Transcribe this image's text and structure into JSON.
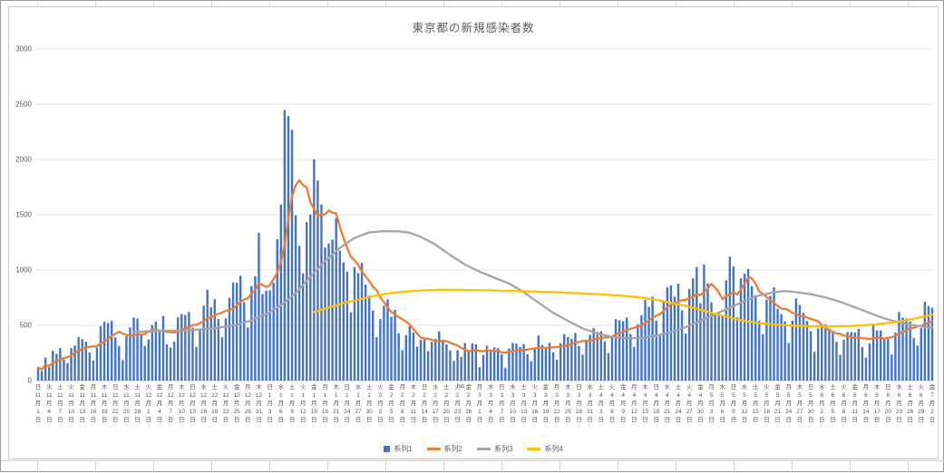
{
  "window": {
    "app_hint": "spreadsheet-embedded-chart"
  },
  "chart_data": {
    "type": "combo",
    "title": "東京都の新規感染者数",
    "xlabel": "",
    "ylabel": "",
    "ylim": [
      0,
      3000
    ],
    "y_ticks": [
      0,
      500,
      1000,
      1500,
      2000,
      2500,
      3000
    ],
    "grid": "horizontal",
    "x_tick_every_n_days": 3,
    "x_tick_label_format": [
      "dow",
      "month",
      "月",
      "day",
      "日"
    ],
    "x_tick_labels": [
      [
        "日",
        11,
        1
      ],
      [
        "水",
        11,
        4
      ],
      [
        "土",
        11,
        7
      ],
      [
        "火",
        11,
        10
      ],
      [
        "金",
        11,
        13
      ],
      [
        "月",
        11,
        16
      ],
      [
        "木",
        11,
        19
      ],
      [
        "日",
        11,
        22
      ],
      [
        "水",
        11,
        25
      ],
      [
        "土",
        11,
        28
      ],
      [
        "火",
        12,
        1
      ],
      [
        "金",
        12,
        4
      ],
      [
        "月",
        12,
        7
      ],
      [
        "木",
        12,
        10
      ],
      [
        "日",
        12,
        13
      ],
      [
        "水",
        12,
        16
      ],
      [
        "土",
        12,
        19
      ],
      [
        "火",
        12,
        22
      ],
      [
        "金",
        12,
        25
      ],
      [
        "月",
        12,
        28
      ],
      [
        "木",
        12,
        31
      ],
      [
        "日",
        1,
        3
      ],
      [
        "水",
        1,
        6
      ],
      [
        "土",
        1,
        9
      ],
      [
        "火",
        1,
        12
      ],
      [
        "金",
        1,
        15
      ],
      [
        "月",
        1,
        18
      ],
      [
        "木",
        1,
        21
      ],
      [
        "日",
        1,
        24
      ],
      [
        "水",
        1,
        27
      ],
      [
        "土",
        1,
        30
      ],
      [
        "火",
        2,
        2
      ],
      [
        "金",
        2,
        5
      ],
      [
        "月",
        2,
        8
      ],
      [
        "木",
        2,
        11
      ],
      [
        "日",
        2,
        14
      ],
      [
        "水",
        2,
        17
      ],
      [
        "土",
        2,
        20
      ],
      [
        "火",
        2,
        23
      ],
      [
        "金",
        2,
        26
      ],
      [
        "月",
        3,
        1
      ],
      [
        "木",
        3,
        4
      ],
      [
        "日",
        3,
        7
      ],
      [
        "水",
        3,
        10
      ],
      [
        "土",
        3,
        13
      ],
      [
        "火",
        3,
        16
      ],
      [
        "金",
        3,
        19
      ],
      [
        "月",
        3,
        22
      ],
      [
        "木",
        3,
        25
      ],
      [
        "日",
        3,
        28
      ],
      [
        "水",
        3,
        31
      ],
      [
        "土",
        4,
        3
      ],
      [
        "火",
        4,
        6
      ],
      [
        "金",
        4,
        9
      ],
      [
        "月",
        4,
        12
      ],
      [
        "木",
        4,
        15
      ],
      [
        "日",
        4,
        18
      ],
      [
        "水",
        4,
        21
      ],
      [
        "土",
        4,
        24
      ],
      [
        "火",
        4,
        27
      ],
      [
        "金",
        4,
        30
      ],
      [
        "月",
        5,
        3
      ],
      [
        "木",
        5,
        6
      ],
      [
        "日",
        5,
        9
      ],
      [
        "水",
        5,
        12
      ],
      [
        "土",
        5,
        15
      ],
      [
        "火",
        5,
        18
      ],
      [
        "金",
        5,
        21
      ],
      [
        "月",
        5,
        24
      ],
      [
        "木",
        5,
        27
      ],
      [
        "日",
        5,
        30
      ],
      [
        "水",
        6,
        2
      ],
      [
        "土",
        6,
        5
      ],
      [
        "火",
        6,
        8
      ],
      [
        "金",
        6,
        11
      ],
      [
        "月",
        6,
        14
      ],
      [
        "木",
        6,
        17
      ],
      [
        "日",
        6,
        20
      ],
      [
        "水",
        6,
        23
      ],
      [
        "土",
        6,
        26
      ],
      [
        "火",
        6,
        29
      ],
      [
        "金",
        7,
        2
      ]
    ],
    "stray_text": "ha",
    "legend": {
      "position": "bottom",
      "entries": [
        "系列1",
        "系列2",
        "系列3",
        "系列4"
      ]
    },
    "series": [
      {
        "name": "系列1",
        "type": "bar",
        "color": "#4472C4",
        "values": [
          116,
          87,
          209,
          122,
          269,
          242,
          294,
          189,
          157,
          293,
          317,
          393,
          374,
          352,
          255,
          180,
          298,
          493,
          534,
          522,
          539,
          391,
          314,
          186,
          401,
          481,
          570,
          561,
          418,
          311,
          372,
          500,
          533,
          449,
          584,
          327,
          299,
          352,
          572,
          602,
          595,
          621,
          480,
          305,
          460,
          678,
          822,
          664,
          736,
          556,
          392,
          563,
          748,
          888,
          884,
          949,
          708,
          481,
          856,
          944,
          1337,
          783,
          814,
          816,
          884,
          1278,
          1591,
          2447,
          2392,
          2268,
          1494,
          1219,
          970,
          1433,
          1502,
          2001,
          1809,
          1592,
          1204,
          1240,
          1274,
          1471,
          1175,
          1070,
          986,
          618,
          1026,
          973,
          1064,
          868,
          769,
          633,
          393,
          556,
          676,
          734,
          577,
          639,
          429,
          276,
          412,
          491,
          434,
          307,
          369,
          371,
          266,
          350,
          378,
          445,
          353,
          327,
          272,
          178,
          275,
          213,
          340,
          270,
          337,
          329,
          121,
          232,
          316,
          279,
          301,
          293,
          237,
          116,
          290,
          340,
          335,
          304,
          330,
          239,
          175,
          300,
          409,
          323,
          303,
          342,
          256,
          187,
          337,
          420,
          394,
          376,
          430,
          313,
          234,
          364,
          414,
          475,
          440,
          446,
          355,
          249,
          399,
          555,
          545,
          537,
          570,
          421,
          306,
          510,
          591,
          729,
          667,
          759,
          543,
          405,
          711,
          843,
          861,
          759,
          876,
          635,
          425,
          828,
          925,
          1027,
          698,
          1050,
          879,
          708,
          609,
          621,
          591,
          907,
          1121,
          1032,
          573,
          925,
          969,
          1010,
          854,
          772,
          542,
          419,
          732,
          766,
          843,
          649,
          602,
          535,
          340,
          542,
          743,
          684,
          614,
          539,
          448,
          260,
          471,
          487,
          508,
          472,
          436,
          351,
          235,
          369,
          440,
          439,
          435,
          467,
          304,
          209,
          337,
          501,
          452,
          453,
          388,
          376,
          236,
          435,
          619,
          570,
          562,
          534,
          386,
          317,
          476,
          714,
          673,
          660
        ]
      },
      {
        "name": "系列2",
        "type": "line",
        "color": "#ED7D31",
        "note": "smooth trend line: 7-day moving average of 系列1",
        "derived_from": "series.0"
      },
      {
        "name": "系列3",
        "type": "line",
        "color": "#A5A5A5",
        "note": "long-period smoothed trend; anchor points as [day_index, value]",
        "anchors_day_value": [
          [
            26,
            440
          ],
          [
            33,
            450
          ],
          [
            40,
            455
          ],
          [
            47,
            468
          ],
          [
            54,
            505
          ],
          [
            58,
            545
          ],
          [
            62,
            600
          ],
          [
            66,
            680
          ],
          [
            70,
            790
          ],
          [
            74,
            940
          ],
          [
            78,
            1080
          ],
          [
            82,
            1200
          ],
          [
            86,
            1290
          ],
          [
            90,
            1340
          ],
          [
            94,
            1352
          ],
          [
            98,
            1350
          ],
          [
            101,
            1338
          ],
          [
            104,
            1300
          ],
          [
            108,
            1230
          ],
          [
            112,
            1135
          ],
          [
            116,
            1050
          ],
          [
            120,
            985
          ],
          [
            124,
            930
          ],
          [
            128,
            878
          ],
          [
            132,
            800
          ],
          [
            136,
            705
          ],
          [
            140,
            612
          ],
          [
            144,
            540
          ],
          [
            148,
            472
          ],
          [
            152,
            425
          ],
          [
            156,
            396
          ],
          [
            160,
            382
          ],
          [
            164,
            386
          ],
          [
            168,
            406
          ],
          [
            172,
            440
          ],
          [
            176,
            482
          ],
          [
            180,
            540
          ],
          [
            184,
            600
          ],
          [
            188,
            660
          ],
          [
            192,
            720
          ],
          [
            196,
            770
          ],
          [
            200,
            800
          ],
          [
            203,
            810
          ],
          [
            206,
            800
          ],
          [
            210,
            782
          ],
          [
            214,
            752
          ],
          [
            218,
            712
          ],
          [
            222,
            662
          ],
          [
            226,
            612
          ],
          [
            230,
            562
          ],
          [
            234,
            526
          ],
          [
            238,
            500
          ],
          [
            241,
            486
          ],
          [
            243,
            480
          ]
        ]
      },
      {
        "name": "系列4",
        "type": "line",
        "color": "#FFC000",
        "note": "starts mid-January; anchor points as [day_index, value]",
        "anchors_day_value": [
          [
            75,
            620
          ],
          [
            79,
            660
          ],
          [
            83,
            700
          ],
          [
            87,
            733
          ],
          [
            91,
            762
          ],
          [
            95,
            788
          ],
          [
            100,
            806
          ],
          [
            105,
            816
          ],
          [
            110,
            821
          ],
          [
            116,
            820
          ],
          [
            122,
            816
          ],
          [
            128,
            811
          ],
          [
            134,
            806
          ],
          [
            140,
            800
          ],
          [
            146,
            791
          ],
          [
            152,
            782
          ],
          [
            158,
            770
          ],
          [
            163,
            754
          ],
          [
            168,
            730
          ],
          [
            172,
            704
          ],
          [
            176,
            675
          ],
          [
            180,
            640
          ],
          [
            184,
            604
          ],
          [
            188,
            570
          ],
          [
            192,
            540
          ],
          [
            196,
            519
          ],
          [
            200,
            507
          ],
          [
            205,
            497
          ],
          [
            210,
            491
          ],
          [
            215,
            489
          ],
          [
            220,
            492
          ],
          [
            225,
            501
          ],
          [
            230,
            516
          ],
          [
            234,
            534
          ],
          [
            238,
            559
          ],
          [
            241,
            580
          ],
          [
            243,
            596
          ]
        ]
      }
    ]
  }
}
